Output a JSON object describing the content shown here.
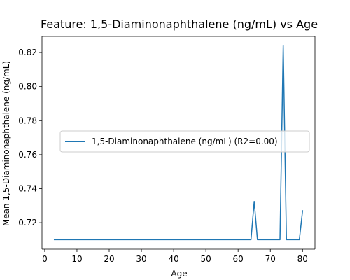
{
  "chart_data": {
    "type": "line",
    "title": "Feature: 1,5-Diaminonaphthalene (ng/mL) vs Age",
    "xlabel": "Age",
    "ylabel": "Mean 1,5-Diaminonaphthalene (ng/mL)",
    "xlim": [
      -0.85,
      83.85
    ],
    "ylim": [
      0.7044,
      0.8295
    ],
    "xticks": [
      0,
      10,
      20,
      30,
      40,
      50,
      60,
      70,
      80
    ],
    "yticks": [
      0.72,
      0.74,
      0.76,
      0.78,
      0.8,
      0.82
    ],
    "grid": false,
    "legend": {
      "placement": "center-right"
    },
    "series": [
      {
        "name": "1,5-Diaminonaphthalene (ng/mL) (R2=0.00)",
        "color": "#1f77b4",
        "x": [
          3,
          4,
          5,
          6,
          7,
          8,
          9,
          10,
          11,
          12,
          13,
          14,
          15,
          16,
          17,
          18,
          19,
          20,
          21,
          22,
          23,
          24,
          25,
          26,
          27,
          28,
          29,
          30,
          31,
          32,
          33,
          34,
          35,
          36,
          37,
          38,
          39,
          40,
          41,
          42,
          43,
          44,
          45,
          46,
          47,
          48,
          49,
          50,
          51,
          52,
          53,
          54,
          55,
          56,
          57,
          58,
          59,
          60,
          61,
          62,
          63,
          64,
          65,
          66,
          67,
          68,
          69,
          70,
          71,
          72,
          73,
          74,
          75,
          76,
          77,
          78,
          79,
          80
        ],
        "y": [
          0.71,
          0.71,
          0.71,
          0.71,
          0.71,
          0.71,
          0.71,
          0.71,
          0.71,
          0.71,
          0.71,
          0.71,
          0.71,
          0.71,
          0.71,
          0.71,
          0.71,
          0.71,
          0.71,
          0.71,
          0.71,
          0.71,
          0.71,
          0.71,
          0.71,
          0.71,
          0.71,
          0.71,
          0.71,
          0.71,
          0.71,
          0.71,
          0.71,
          0.71,
          0.71,
          0.71,
          0.71,
          0.71,
          0.71,
          0.71,
          0.71,
          0.71,
          0.71,
          0.71,
          0.71,
          0.71,
          0.71,
          0.71,
          0.71,
          0.71,
          0.71,
          0.71,
          0.71,
          0.71,
          0.71,
          0.71,
          0.71,
          0.71,
          0.71,
          0.71,
          0.71,
          0.71,
          0.7325,
          0.71,
          0.71,
          0.71,
          0.71,
          0.71,
          0.71,
          0.71,
          0.71,
          0.824,
          0.71,
          0.71,
          0.71,
          0.71,
          0.71,
          0.727
        ]
      }
    ]
  }
}
